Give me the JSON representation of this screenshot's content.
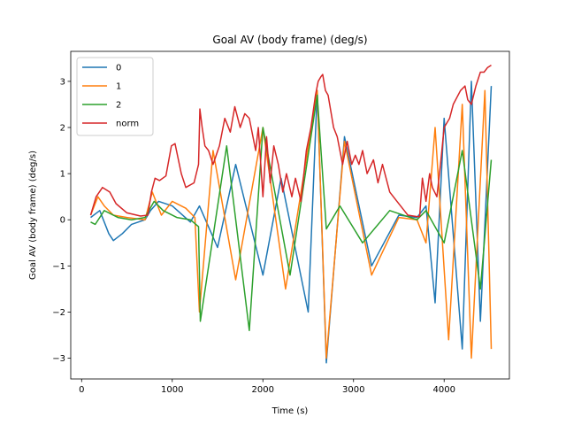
{
  "chart_data": {
    "type": "line",
    "title": "Goal AV (body frame) (deg/s)",
    "xlabel": "Time (s)",
    "ylabel": "Goal AV (body frame) (deg/s)",
    "xlim": [
      -120,
      4720
    ],
    "ylim": [
      -3.45,
      3.65
    ],
    "xticks": [
      0,
      1000,
      2000,
      3000,
      4000
    ],
    "xtick_labels": [
      "0",
      "1000",
      "2000",
      "3000",
      "4000"
    ],
    "yticks": [
      -3,
      -2,
      -1,
      0,
      1,
      2,
      3
    ],
    "ytick_labels": [
      "−3",
      "−2",
      "−1",
      "0",
      "1",
      "2",
      "3"
    ],
    "grid": false,
    "legend_position": "top-left",
    "colors": {
      "0": "#1f77b4",
      "1": "#ff7f0e",
      "2": "#2ca02c",
      "norm": "#d62728"
    },
    "series": [
      {
        "name": "0",
        "x": [
          100,
          200,
          300,
          350,
          450,
          550,
          700,
          760,
          850,
          1000,
          1200,
          1300,
          1500,
          1700,
          2000,
          2200,
          2500,
          2600,
          2700,
          2900,
          3200,
          3500,
          3700,
          3800,
          3900,
          4000,
          4200,
          4300,
          4400,
          4520
        ],
        "values": [
          0.05,
          0.2,
          -0.3,
          -0.45,
          -0.3,
          -0.1,
          0.0,
          0.2,
          0.4,
          0.3,
          -0.05,
          0.3,
          -0.6,
          1.2,
          -1.2,
          0.9,
          -2.0,
          2.8,
          -3.1,
          1.8,
          -1.0,
          0.1,
          0.05,
          0.3,
          -1.8,
          2.2,
          -2.8,
          3.0,
          -2.2,
          2.9
        ]
      },
      {
        "name": "1",
        "x": [
          100,
          180,
          250,
          350,
          500,
          700,
          780,
          880,
          1000,
          1150,
          1250,
          1300,
          1450,
          1700,
          2000,
          2250,
          2600,
          2700,
          2900,
          3200,
          3500,
          3700,
          3800,
          3900,
          4050,
          4200,
          4300,
          4450,
          4520
        ],
        "values": [
          0.1,
          0.5,
          0.3,
          0.1,
          0.05,
          0.0,
          0.6,
          0.1,
          0.4,
          0.25,
          0.05,
          -2.0,
          1.5,
          -1.3,
          2.0,
          -1.5,
          2.8,
          -3.0,
          1.7,
          -1.2,
          0.05,
          0.0,
          -0.5,
          2.0,
          -2.6,
          2.5,
          -3.0,
          2.8,
          -2.8
        ]
      },
      {
        "name": "2",
        "x": [
          100,
          150,
          250,
          400,
          550,
          700,
          800,
          900,
          1050,
          1200,
          1290,
          1310,
          1600,
          1850,
          2000,
          2300,
          2600,
          2700,
          2850,
          3100,
          3400,
          3700,
          3800,
          4000,
          4200,
          4400,
          4520
        ],
        "values": [
          -0.05,
          -0.1,
          0.2,
          0.05,
          0.0,
          0.05,
          0.4,
          0.2,
          0.05,
          0.0,
          -0.15,
          -2.2,
          1.6,
          -2.4,
          2.0,
          -1.2,
          2.7,
          -0.2,
          0.3,
          -0.5,
          0.2,
          0.0,
          0.2,
          -0.5,
          1.5,
          -1.5,
          1.3
        ]
      },
      {
        "name": "norm",
        "x": [
          100,
          160,
          230,
          310,
          380,
          500,
          650,
          730,
          770,
          810,
          860,
          930,
          990,
          1030,
          1100,
          1150,
          1240,
          1290,
          1305,
          1330,
          1360,
          1400,
          1450,
          1520,
          1580,
          1640,
          1690,
          1750,
          1800,
          1850,
          1920,
          1950,
          2000,
          2040,
          2080,
          2120,
          2170,
          2220,
          2260,
          2320,
          2360,
          2420,
          2480,
          2530,
          2580,
          2610,
          2640,
          2660,
          2690,
          2720,
          2780,
          2820,
          2880,
          2930,
          2980,
          3020,
          3060,
          3100,
          3150,
          3220,
          3270,
          3320,
          3400,
          3480,
          3560,
          3600,
          3660,
          3700,
          3730,
          3760,
          3800,
          3840,
          3870,
          3920,
          3960,
          4000,
          4060,
          4100,
          4180,
          4230,
          4260,
          4300,
          4350,
          4400,
          4440,
          4480,
          4520
        ],
        "values": [
          0.1,
          0.5,
          0.7,
          0.6,
          0.35,
          0.15,
          0.08,
          0.1,
          0.6,
          0.9,
          0.85,
          0.95,
          1.6,
          1.65,
          1.0,
          0.7,
          0.8,
          1.2,
          2.4,
          2.0,
          1.6,
          1.5,
          1.2,
          1.6,
          2.2,
          1.9,
          2.45,
          2.0,
          2.3,
          2.2,
          1.5,
          2.0,
          0.5,
          1.8,
          0.8,
          1.6,
          1.2,
          0.6,
          1.0,
          0.5,
          0.9,
          0.4,
          1.5,
          2.0,
          2.7,
          3.0,
          3.1,
          3.15,
          2.8,
          2.7,
          2.0,
          1.8,
          1.2,
          1.7,
          1.2,
          1.4,
          1.2,
          1.5,
          1.0,
          1.3,
          0.8,
          1.2,
          0.6,
          0.4,
          0.2,
          0.1,
          0.08,
          0.07,
          0.07,
          0.9,
          0.4,
          1.0,
          0.7,
          0.5,
          1.2,
          2.0,
          2.2,
          2.5,
          2.8,
          2.9,
          2.6,
          2.5,
          2.9,
          3.2,
          3.2,
          3.3,
          3.35
        ]
      }
    ]
  }
}
